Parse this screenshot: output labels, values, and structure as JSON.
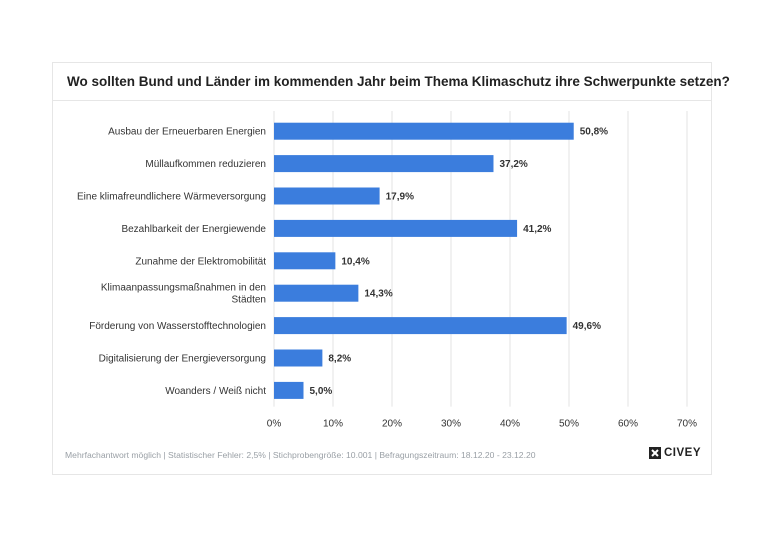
{
  "title": "Wo sollten Bund und Länder im kommenden Jahr beim Thema Klimaschutz ihre Schwerpunkte setzen?",
  "footer": "Mehrfachantwort möglich | Statistischer Fehler: 2,5% | Stichprobengröße: 10.001 | Befragungszeitraum: 18.12.20 - 23.12.20",
  "brand": "CIVEY",
  "colors": {
    "bar": "#3b7ddd",
    "grid": "#e3e3e3",
    "text": "#333333"
  },
  "chart_data": {
    "type": "bar",
    "orientation": "horizontal",
    "categories": [
      [
        "Ausbau der Erneuerbaren Energien"
      ],
      [
        "Müllaufkommen reduzieren"
      ],
      [
        "Eine klimafreundlichere Wärmeversorgung"
      ],
      [
        "Bezahlbarkeit der Energiewende"
      ],
      [
        "Zunahme der Elektromobilität"
      ],
      [
        "Klimaanpassungsmaßnahmen in den",
        "Städten"
      ],
      [
        "Förderung von Wasserstofftechnologien"
      ],
      [
        "Digitalisierung der Energieversorgung"
      ],
      [
        "Woanders / Weiß nicht"
      ]
    ],
    "values": [
      50.8,
      37.2,
      17.9,
      41.2,
      10.4,
      14.3,
      49.6,
      8.2,
      5.0
    ],
    "value_labels": [
      "50,8%",
      "37,2%",
      "17,9%",
      "41,2%",
      "10,4%",
      "14,3%",
      "49,6%",
      "8,2%",
      "5,0%"
    ],
    "xlim": [
      0,
      70
    ],
    "xticks": [
      0,
      10,
      20,
      30,
      40,
      50,
      60,
      70
    ],
    "xtick_labels": [
      "0%",
      "10%",
      "20%",
      "30%",
      "40%",
      "50%",
      "60%",
      "70%"
    ],
    "grid": true
  }
}
